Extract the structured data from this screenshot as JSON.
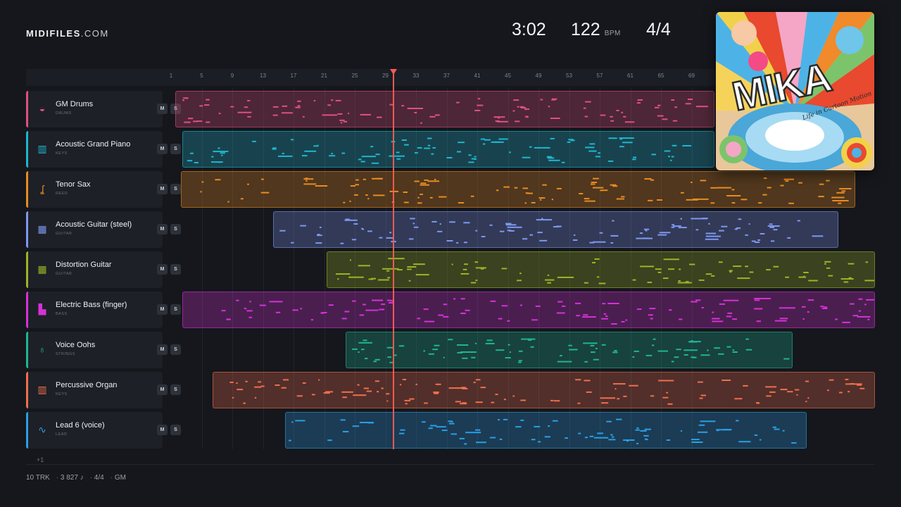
{
  "header": {
    "brand": "MIDIFILES",
    "domain": ".COM",
    "duration": "3:02",
    "bpm": "122",
    "bpm_unit": "BPM",
    "time_signature": "4/4"
  },
  "ruler": {
    "bars": [
      "1",
      "5",
      "9",
      "13",
      "17",
      "21",
      "25",
      "29",
      "33",
      "37",
      "41",
      "45",
      "49",
      "53",
      "57",
      "61",
      "65",
      "69"
    ]
  },
  "tracks": [
    {
      "name": "GM Drums",
      "category": "DRUMS",
      "color": "#e0507f",
      "icon": "drum-icon",
      "glyph": "◒",
      "mute": "M",
      "solo": "S",
      "lane_start": 249,
      "lane_end": 1015
    },
    {
      "name": "Acoustic Grand Piano",
      "category": "KEYS",
      "color": "#1fb6cf",
      "icon": "piano-icon",
      "glyph": "▥",
      "mute": "M",
      "solo": "S",
      "lane_start": 259,
      "lane_end": 1015
    },
    {
      "name": "Tenor Sax",
      "category": "REED",
      "color": "#e88b22",
      "icon": "sax-icon",
      "glyph": "ʆ",
      "mute": "M",
      "solo": "S",
      "lane_start": 257,
      "lane_end": 1215
    },
    {
      "name": "Acoustic Guitar (steel)",
      "category": "GUITAR",
      "color": "#7f97f0",
      "icon": "guitar-icon",
      "glyph": "▦",
      "mute": "M",
      "solo": "S",
      "lane_start": 388,
      "lane_end": 1191
    },
    {
      "name": "Distortion Guitar",
      "category": "GUITAR",
      "color": "#9bb526",
      "icon": "guitar-icon",
      "glyph": "▦",
      "mute": "M",
      "solo": "S",
      "lane_start": 464,
      "lane_end": 1243
    },
    {
      "name": "Electric Bass (finger)",
      "category": "BASS",
      "color": "#d631d8",
      "icon": "bass-icon",
      "glyph": "▙",
      "mute": "M",
      "solo": "S",
      "lane_start": 259,
      "lane_end": 1243
    },
    {
      "name": "Voice Oohs",
      "category": "STRINGS",
      "color": "#1fb594",
      "icon": "violin-icon",
      "glyph": "♁",
      "mute": "M",
      "solo": "S",
      "lane_start": 491,
      "lane_end": 1126
    },
    {
      "name": "Percussive Organ",
      "category": "KEYS",
      "color": "#f06e4f",
      "icon": "organ-icon",
      "glyph": "▥",
      "mute": "M",
      "solo": "S",
      "lane_start": 302,
      "lane_end": 1243
    },
    {
      "name": "Lead 6 (voice)",
      "category": "LEAD",
      "color": "#2a9ee6",
      "icon": "waveform-icon",
      "glyph": "∿",
      "mute": "M",
      "solo": "S",
      "lane_start": 405,
      "lane_end": 1146
    }
  ],
  "more_tracks": "+1",
  "footer": {
    "tracks": "10 TRK",
    "notes": "3 827 ♪",
    "time_signature": "4/4",
    "standard": "GM"
  },
  "album_cover": {
    "title_art": "MIKA",
    "subtitle_art": "Life in Cartoon Motion"
  },
  "colors": {
    "background": "#15171c",
    "playhead": "#ff5a52"
  }
}
